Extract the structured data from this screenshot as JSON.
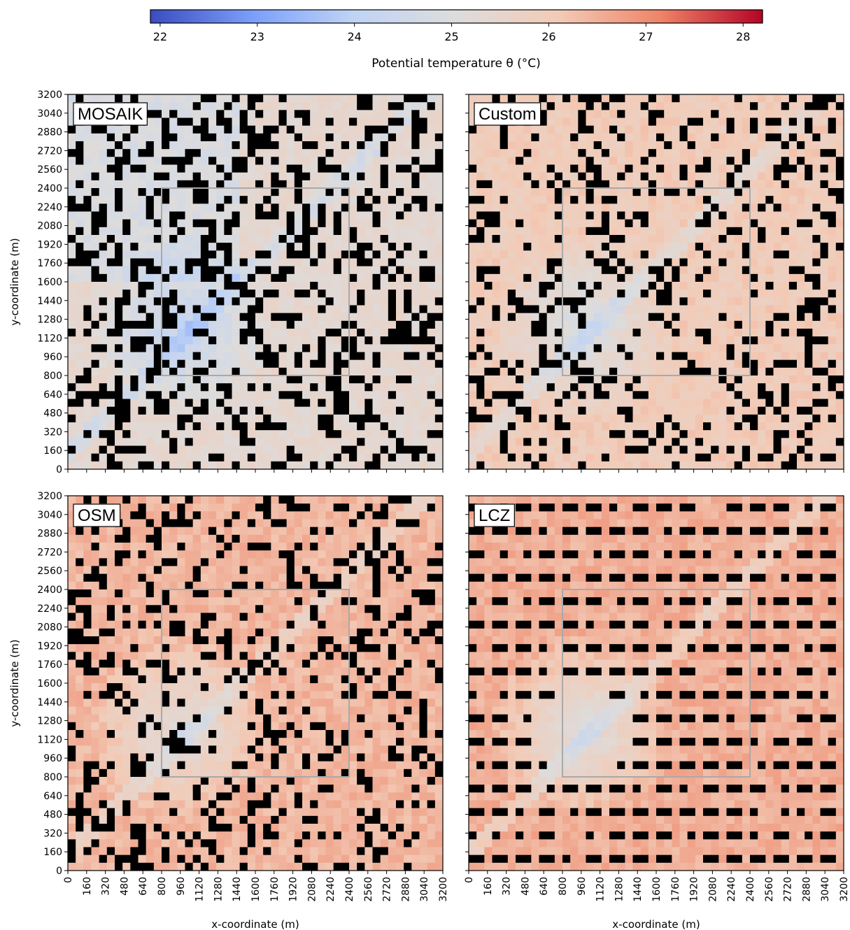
{
  "colorbar": {
    "label": "Potential temperature θ (°C)",
    "lim": [
      21.9,
      28.2
    ],
    "ticks": [
      22,
      23,
      24,
      25,
      26,
      27,
      28
    ],
    "colors": [
      "#3b4cc0",
      "#7b9ff9",
      "#c0d4f5",
      "#dddcdc",
      "#f2cbb7",
      "#ee8468",
      "#b40426"
    ]
  },
  "chart_data": [
    {
      "type": "heatmap",
      "label": "MOSAIK",
      "ylabel": "y-coordinate (m)",
      "show_xtick_labels": false,
      "show_ytick_labels": true,
      "xlim": [
        0,
        3200
      ],
      "ylim": [
        0,
        3200
      ],
      "xticks": [
        0,
        160,
        320,
        480,
        640,
        800,
        960,
        1120,
        1280,
        1440,
        1600,
        1760,
        1920,
        2080,
        2240,
        2400,
        2560,
        2720,
        2880,
        3040,
        3200
      ],
      "yticks": [
        0,
        160,
        320,
        480,
        640,
        800,
        960,
        1120,
        1280,
        1440,
        1600,
        1760,
        1920,
        2080,
        2240,
        2400,
        2560,
        2720,
        2880,
        3040,
        3200
      ],
      "box": {
        "x": [
          800,
          2400
        ],
        "y": [
          800,
          2400
        ]
      }
    },
    {
      "type": "heatmap",
      "label": "Custom",
      "show_xtick_labels": false,
      "show_ytick_labels": false,
      "xlim": [
        0,
        3200
      ],
      "ylim": [
        0,
        3200
      ],
      "xticks": [
        0,
        160,
        320,
        480,
        640,
        800,
        960,
        1120,
        1280,
        1440,
        1600,
        1760,
        1920,
        2080,
        2240,
        2400,
        2560,
        2720,
        2880,
        3040,
        3200
      ],
      "yticks": [
        0,
        160,
        320,
        480,
        640,
        800,
        960,
        1120,
        1280,
        1440,
        1600,
        1760,
        1920,
        2080,
        2240,
        2400,
        2560,
        2720,
        2880,
        3040,
        3200
      ],
      "box": {
        "x": [
          800,
          2400
        ],
        "y": [
          800,
          2400
        ]
      }
    },
    {
      "type": "heatmap",
      "label": "OSM",
      "ylabel": "y-coordinate (m)",
      "xlabel": "x-coordinate (m)",
      "show_xtick_labels": true,
      "show_ytick_labels": true,
      "xlim": [
        0,
        3200
      ],
      "ylim": [
        0,
        3200
      ],
      "xticks": [
        0,
        160,
        320,
        480,
        640,
        800,
        960,
        1120,
        1280,
        1440,
        1600,
        1760,
        1920,
        2080,
        2240,
        2400,
        2560,
        2720,
        2880,
        3040,
        3200
      ],
      "yticks": [
        0,
        160,
        320,
        480,
        640,
        800,
        960,
        1120,
        1280,
        1440,
        1600,
        1760,
        1920,
        2080,
        2240,
        2400,
        2560,
        2720,
        2880,
        3040,
        3200
      ],
      "box": {
        "x": [
          800,
          2400
        ],
        "y": [
          800,
          2400
        ]
      }
    },
    {
      "type": "heatmap",
      "label": "LCZ",
      "xlabel": "x-coordinate (m)",
      "show_xtick_labels": true,
      "show_ytick_labels": false,
      "xlim": [
        0,
        3200
      ],
      "ylim": [
        0,
        3200
      ],
      "xticks": [
        0,
        160,
        320,
        480,
        640,
        800,
        960,
        1120,
        1280,
        1440,
        1600,
        1760,
        1920,
        2080,
        2240,
        2400,
        2560,
        2720,
        2880,
        3040,
        3200
      ],
      "yticks": [
        0,
        160,
        320,
        480,
        640,
        800,
        960,
        1120,
        1280,
        1440,
        1600,
        1760,
        1920,
        2080,
        2240,
        2400,
        2560,
        2720,
        2880,
        3040,
        3200
      ],
      "box": {
        "x": [
          800,
          2400
        ],
        "y": [
          800,
          2400
        ]
      }
    }
  ]
}
